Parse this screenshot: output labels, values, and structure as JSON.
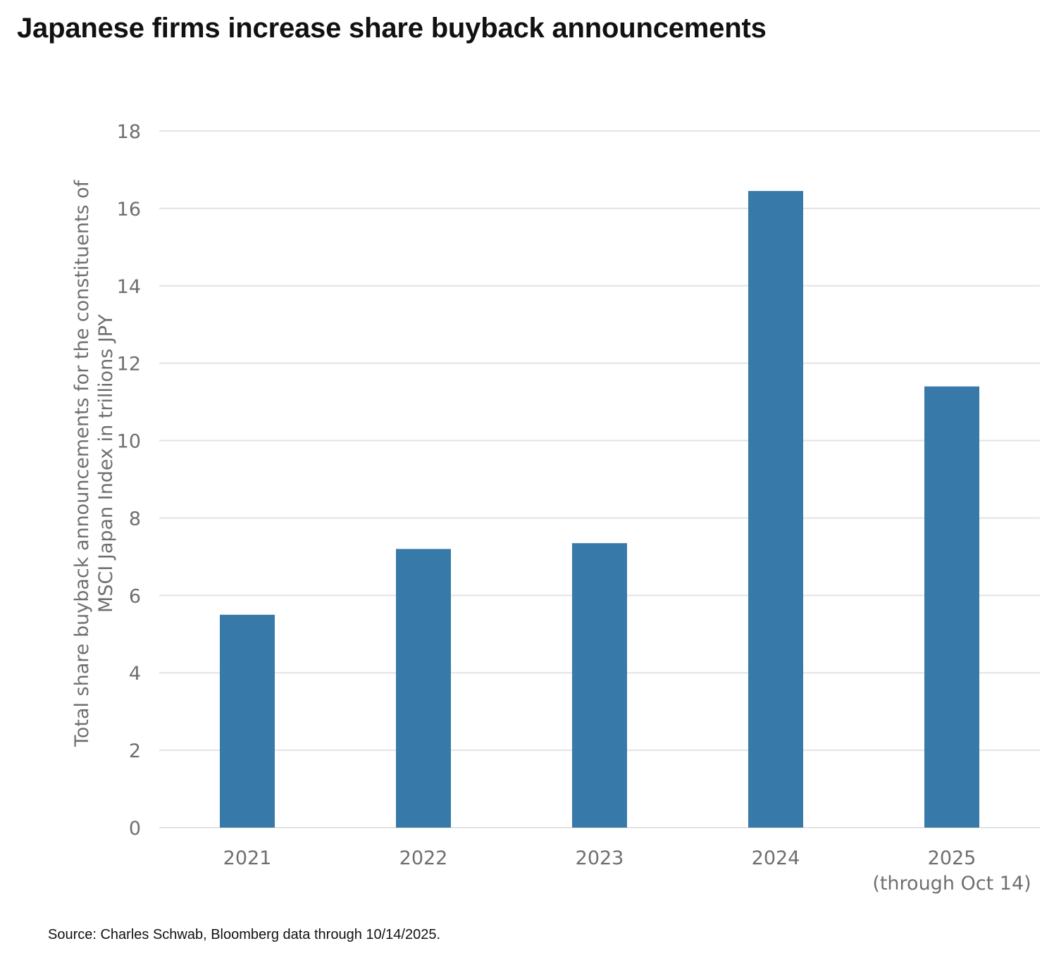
{
  "title": "Japanese firms increase share buyback announcements",
  "source": "Source: Charles Schwab, Bloomberg data through 10/14/2025.",
  "colors": {
    "bar": "#3779a8",
    "grid": "#e3e3e3",
    "axis_text": "#6f6f6f"
  },
  "chart_data": {
    "type": "bar",
    "categories": [
      [
        "2021"
      ],
      [
        "2022"
      ],
      [
        "2023"
      ],
      [
        "2024"
      ],
      [
        "2025",
        "(through Oct 14)"
      ]
    ],
    "values": [
      5.5,
      7.2,
      7.35,
      16.45,
      11.4
    ],
    "ylabel_lines": [
      "Total share buyback announcements for the constituents of",
      "MSCI Japan Index in trillions JPY"
    ],
    "ylim": [
      0,
      18
    ],
    "yticks": [
      0,
      2,
      4,
      6,
      8,
      10,
      12,
      14,
      16,
      18
    ],
    "grid": true
  }
}
